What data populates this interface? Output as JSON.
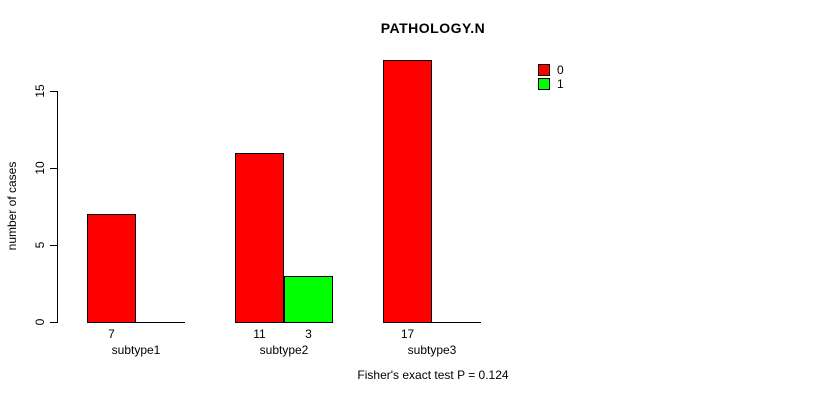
{
  "chart_data": {
    "type": "bar",
    "title": "PATHOLOGY.N",
    "xlabel": "",
    "ylabel": "number of cases",
    "categories": [
      "subtype1",
      "subtype2",
      "subtype3"
    ],
    "series": [
      {
        "name": "0",
        "color": "#ff0000",
        "values": [
          7,
          11,
          17
        ]
      },
      {
        "name": "1",
        "color": "#00ff00",
        "values": [
          0,
          3,
          0
        ]
      }
    ],
    "bar_value_labels": [
      [
        "7",
        "11",
        "17"
      ],
      [
        "",
        "3",
        ""
      ]
    ],
    "yticks": [
      0,
      5,
      10,
      15
    ],
    "ylim": [
      0,
      17
    ],
    "grid": false,
    "legend_position": "top-right",
    "legend_entries": [
      {
        "label": "0",
        "color": "#ff0000"
      },
      {
        "label": "1",
        "color": "#00ff00"
      }
    ],
    "annotation": "Fisher's exact test P = 0.124"
  }
}
